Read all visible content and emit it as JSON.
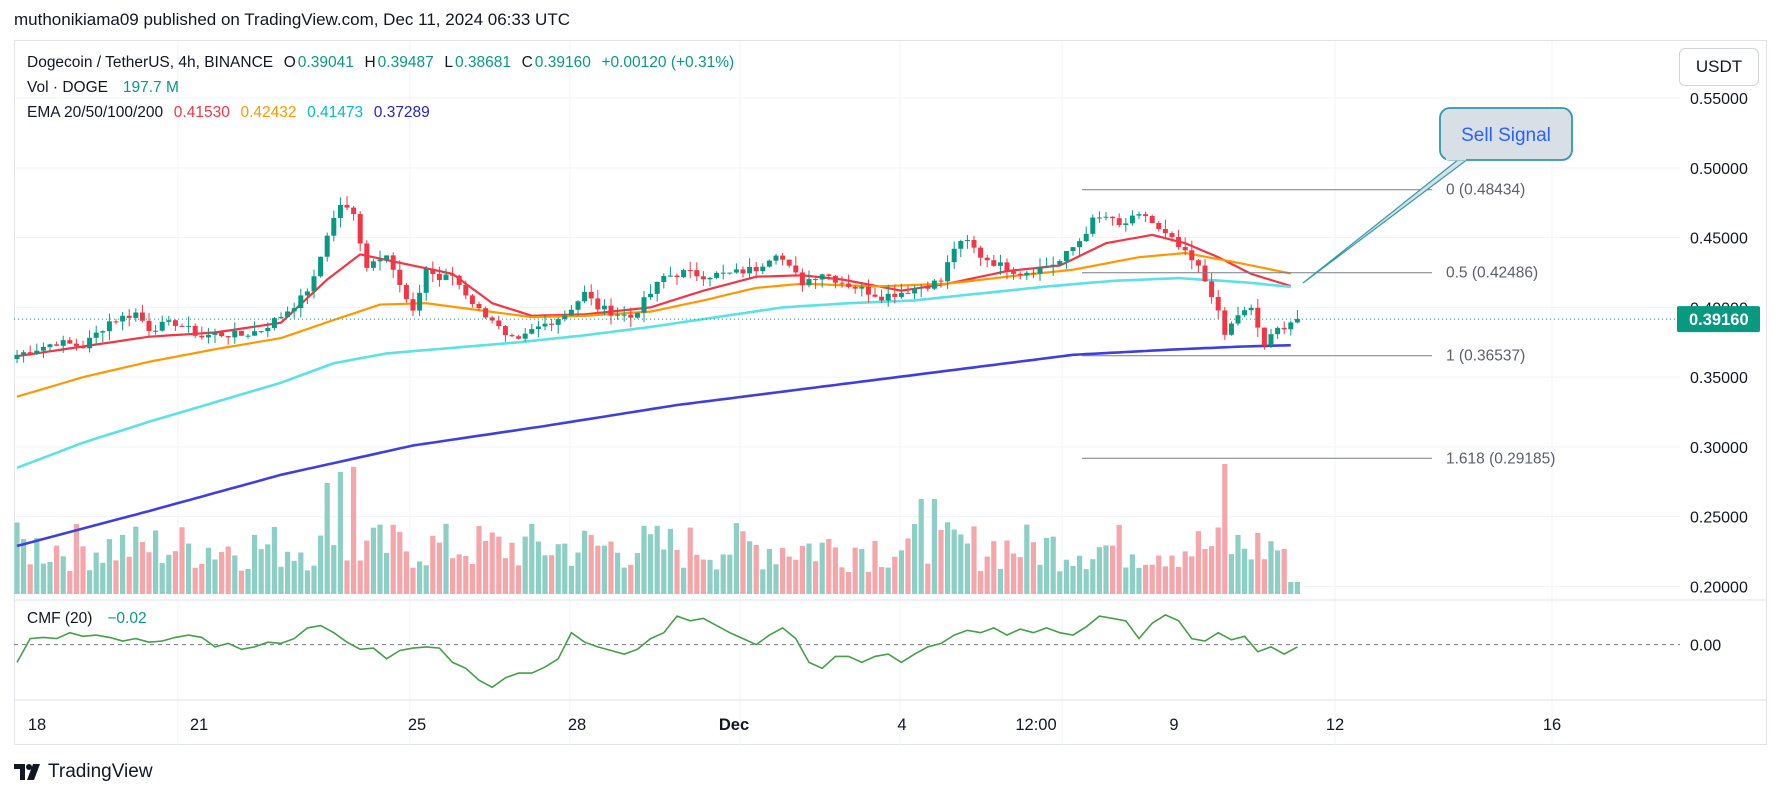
{
  "publisher_line": "muthonikiama09 published on TradingView.com, Dec 11, 2024 06:33 UTC",
  "branding": "TradingView",
  "currency_button": "USDT",
  "legend": {
    "title": "Dogecoin / TetherUS, 4h, BINANCE",
    "o_label": "O",
    "o_value": "0.39041",
    "h_label": "H",
    "h_value": "0.39487",
    "l_label": "L",
    "l_value": "0.38681",
    "c_label": "C",
    "c_value": "0.39160",
    "change": "+0.00120 (+0.31%)",
    "vol_label": "Vol · DOGE",
    "vol_value": "197.7 M",
    "ema_label": "EMA 20/50/100/200",
    "ema20": "0.41530",
    "ema50": "0.42432",
    "ema100": "0.41473",
    "ema200": "0.37289",
    "cmf_label": "CMF (20)",
    "cmf_value": "−0.02"
  },
  "colors": {
    "up": "#089981",
    "down": "#F23645",
    "vol_up": "#8dcfc4",
    "vol_down": "#f5a6ab",
    "ema20": "#F23645",
    "ema50": "#FF9800",
    "ema100": "#5ce1e6",
    "ema200": "#3f3fe0",
    "cmf": "#43a047",
    "price_label": "#089981"
  },
  "annotation": {
    "text": "Sell Signal"
  },
  "chart_data": {
    "type": "candlestick",
    "symbol": "Dogecoin / TetherUS",
    "interval": "4h",
    "exchange": "BINANCE",
    "ylim": [
      0.19,
      0.56
    ],
    "y_ticks": [
      "0.55000",
      "0.50000",
      "0.45000",
      "0.40000",
      "0.35000",
      "0.30000",
      "0.25000",
      "0.20000"
    ],
    "x_ticks": [
      "18",
      "21",
      "25",
      "28",
      "Dec",
      "4",
      "12:00",
      "9",
      "12",
      "16"
    ],
    "last_price": "0.39160",
    "fibonacci": [
      {
        "ratio": "0",
        "price": 0.48434,
        "label": "0 (0.48434)"
      },
      {
        "ratio": "0.5",
        "price": 0.42486,
        "label": "0.5 (0.42486)"
      },
      {
        "ratio": "1",
        "price": 0.36537,
        "label": "1 (0.36537)"
      },
      {
        "ratio": "1.618",
        "price": 0.29185,
        "label": "1.618 (0.29185)"
      }
    ],
    "ohlc_anchors": [
      [
        0,
        0.366
      ],
      [
        6,
        0.375
      ],
      [
        10,
        0.372
      ],
      [
        14,
        0.39
      ],
      [
        18,
        0.396
      ],
      [
        20,
        0.385
      ],
      [
        24,
        0.389
      ],
      [
        28,
        0.379
      ],
      [
        30,
        0.381
      ],
      [
        34,
        0.38
      ],
      [
        37,
        0.384
      ],
      [
        40,
        0.394
      ],
      [
        43,
        0.406
      ],
      [
        45,
        0.42
      ],
      [
        47,
        0.453
      ],
      [
        49,
        0.474
      ],
      [
        51,
        0.466
      ],
      [
        53,
        0.43
      ],
      [
        56,
        0.44
      ],
      [
        58,
        0.415
      ],
      [
        60,
        0.395
      ],
      [
        62,
        0.428
      ],
      [
        64,
        0.42
      ],
      [
        66,
        0.423
      ],
      [
        68,
        0.41
      ],
      [
        70,
        0.398
      ],
      [
        72,
        0.392
      ],
      [
        74,
        0.378
      ],
      [
        76,
        0.375
      ],
      [
        78,
        0.383
      ],
      [
        80,
        0.388
      ],
      [
        83,
        0.395
      ],
      [
        86,
        0.41
      ],
      [
        88,
        0.4
      ],
      [
        90,
        0.397
      ],
      [
        93,
        0.393
      ],
      [
        96,
        0.41
      ],
      [
        98,
        0.422
      ],
      [
        101,
        0.425
      ],
      [
        104,
        0.423
      ],
      [
        108,
        0.424
      ],
      [
        112,
        0.428
      ],
      [
        115,
        0.44
      ],
      [
        117,
        0.428
      ],
      [
        119,
        0.418
      ],
      [
        122,
        0.425
      ],
      [
        125,
        0.418
      ],
      [
        128,
        0.413
      ],
      [
        131,
        0.408
      ],
      [
        134,
        0.411
      ],
      [
        137,
        0.415
      ],
      [
        140,
        0.419
      ],
      [
        142,
        0.443
      ],
      [
        144,
        0.447
      ],
      [
        146,
        0.437
      ],
      [
        149,
        0.43
      ],
      [
        152,
        0.425
      ],
      [
        155,
        0.428
      ],
      [
        158,
        0.433
      ],
      [
        161,
        0.448
      ],
      [
        163,
        0.462
      ],
      [
        165,
        0.465
      ],
      [
        167,
        0.458
      ],
      [
        169,
        0.463
      ],
      [
        171,
        0.466
      ],
      [
        173,
        0.455
      ],
      [
        175,
        0.448
      ],
      [
        177,
        0.438
      ],
      [
        179,
        0.428
      ],
      [
        181,
        0.41
      ],
      [
        183,
        0.38
      ],
      [
        185,
        0.395
      ],
      [
        187,
        0.398
      ],
      [
        189,
        0.373
      ],
      [
        191,
        0.384
      ],
      [
        193,
        0.39
      ],
      [
        194,
        0.3916
      ]
    ],
    "ema_points": {
      "ema20": [
        [
          0,
          0.365
        ],
        [
          10,
          0.372
        ],
        [
          20,
          0.379
        ],
        [
          30,
          0.382
        ],
        [
          40,
          0.389
        ],
        [
          47,
          0.42
        ],
        [
          52,
          0.438
        ],
        [
          60,
          0.43
        ],
        [
          66,
          0.424
        ],
        [
          72,
          0.403
        ],
        [
          78,
          0.394
        ],
        [
          86,
          0.395
        ],
        [
          96,
          0.4
        ],
        [
          104,
          0.412
        ],
        [
          112,
          0.422
        ],
        [
          119,
          0.423
        ],
        [
          125,
          0.42
        ],
        [
          134,
          0.412
        ],
        [
          141,
          0.417
        ],
        [
          150,
          0.426
        ],
        [
          158,
          0.43
        ],
        [
          165,
          0.446
        ],
        [
          172,
          0.452
        ],
        [
          177,
          0.446
        ],
        [
          182,
          0.436
        ],
        [
          187,
          0.424
        ],
        [
          193,
          0.4153
        ]
      ],
      "ema50": [
        [
          0,
          0.336
        ],
        [
          10,
          0.35
        ],
        [
          20,
          0.361
        ],
        [
          30,
          0.37
        ],
        [
          40,
          0.378
        ],
        [
          48,
          0.391
        ],
        [
          55,
          0.402
        ],
        [
          62,
          0.403
        ],
        [
          70,
          0.398
        ],
        [
          78,
          0.393
        ],
        [
          86,
          0.394
        ],
        [
          96,
          0.397
        ],
        [
          104,
          0.405
        ],
        [
          112,
          0.414
        ],
        [
          119,
          0.417
        ],
        [
          130,
          0.415
        ],
        [
          141,
          0.417
        ],
        [
          150,
          0.422
        ],
        [
          160,
          0.427
        ],
        [
          170,
          0.436
        ],
        [
          177,
          0.439
        ],
        [
          185,
          0.432
        ],
        [
          193,
          0.4243
        ]
      ],
      "ema100": [
        [
          0,
          0.285
        ],
        [
          10,
          0.303
        ],
        [
          20,
          0.318
        ],
        [
          30,
          0.332
        ],
        [
          40,
          0.346
        ],
        [
          48,
          0.36
        ],
        [
          56,
          0.367
        ],
        [
          66,
          0.371
        ],
        [
          76,
          0.375
        ],
        [
          86,
          0.38
        ],
        [
          96,
          0.386
        ],
        [
          106,
          0.393
        ],
        [
          116,
          0.4
        ],
        [
          126,
          0.403
        ],
        [
          136,
          0.405
        ],
        [
          146,
          0.41
        ],
        [
          156,
          0.415
        ],
        [
          166,
          0.419
        ],
        [
          176,
          0.421
        ],
        [
          186,
          0.418
        ],
        [
          193,
          0.4147
        ]
      ],
      "ema200": [
        [
          0,
          0.229
        ],
        [
          20,
          0.254
        ],
        [
          40,
          0.28
        ],
        [
          60,
          0.301
        ],
        [
          80,
          0.315
        ],
        [
          100,
          0.33
        ],
        [
          120,
          0.342
        ],
        [
          140,
          0.354
        ],
        [
          160,
          0.366
        ],
        [
          176,
          0.37
        ],
        [
          186,
          0.372
        ],
        [
          193,
          0.3729
        ]
      ]
    },
    "cmf_points": [
      [
        0,
        -0.15
      ],
      [
        2,
        0.05
      ],
      [
        4,
        0.06
      ],
      [
        6,
        0.05
      ],
      [
        8,
        0.1
      ],
      [
        10,
        0.07
      ],
      [
        12,
        0.08
      ],
      [
        14,
        0.06
      ],
      [
        16,
        0.03
      ],
      [
        18,
        0.05
      ],
      [
        20,
        0.02
      ],
      [
        22,
        0.03
      ],
      [
        24,
        0.06
      ],
      [
        26,
        0.08
      ],
      [
        28,
        0.06
      ],
      [
        30,
        -0.02
      ],
      [
        32,
        0.01
      ],
      [
        34,
        -0.04
      ],
      [
        36,
        -0.02
      ],
      [
        38,
        0.02
      ],
      [
        40,
        0.01
      ],
      [
        42,
        0.05
      ],
      [
        44,
        0.14
      ],
      [
        46,
        0.16
      ],
      [
        48,
        0.1
      ],
      [
        50,
        0.02
      ],
      [
        52,
        -0.04
      ],
      [
        54,
        -0.03
      ],
      [
        56,
        -0.12
      ],
      [
        58,
        -0.05
      ],
      [
        60,
        -0.03
      ],
      [
        62,
        -0.02
      ],
      [
        64,
        -0.03
      ],
      [
        66,
        -0.15
      ],
      [
        68,
        -0.2
      ],
      [
        70,
        -0.3
      ],
      [
        72,
        -0.36
      ],
      [
        74,
        -0.28
      ],
      [
        76,
        -0.24
      ],
      [
        78,
        -0.24
      ],
      [
        80,
        -0.19
      ],
      [
        82,
        -0.12
      ],
      [
        84,
        0.1
      ],
      [
        86,
        0.02
      ],
      [
        88,
        -0.02
      ],
      [
        90,
        -0.05
      ],
      [
        92,
        -0.08
      ],
      [
        94,
        -0.04
      ],
      [
        96,
        0.05
      ],
      [
        98,
        0.1
      ],
      [
        100,
        0.24
      ],
      [
        102,
        0.2
      ],
      [
        104,
        0.22
      ],
      [
        106,
        0.16
      ],
      [
        108,
        0.1
      ],
      [
        110,
        0.05
      ],
      [
        112,
        0.0
      ],
      [
        114,
        0.08
      ],
      [
        116,
        0.14
      ],
      [
        118,
        0.05
      ],
      [
        120,
        -0.15
      ],
      [
        122,
        -0.2
      ],
      [
        124,
        -0.1
      ],
      [
        126,
        -0.1
      ],
      [
        128,
        -0.15
      ],
      [
        130,
        -0.1
      ],
      [
        132,
        -0.08
      ],
      [
        134,
        -0.15
      ],
      [
        136,
        -0.08
      ],
      [
        138,
        -0.02
      ],
      [
        140,
        0.01
      ],
      [
        142,
        0.08
      ],
      [
        144,
        0.12
      ],
      [
        146,
        0.1
      ],
      [
        148,
        0.14
      ],
      [
        150,
        0.08
      ],
      [
        152,
        0.13
      ],
      [
        154,
        0.1
      ],
      [
        156,
        0.14
      ],
      [
        158,
        0.1
      ],
      [
        160,
        0.08
      ],
      [
        162,
        0.15
      ],
      [
        164,
        0.24
      ],
      [
        166,
        0.22
      ],
      [
        168,
        0.2
      ],
      [
        170,
        0.05
      ],
      [
        172,
        0.18
      ],
      [
        174,
        0.25
      ],
      [
        176,
        0.2
      ],
      [
        178,
        0.05
      ],
      [
        180,
        0.03
      ],
      [
        182,
        0.1
      ],
      [
        184,
        0.04
      ],
      [
        186,
        0.07
      ],
      [
        188,
        -0.06
      ],
      [
        190,
        -0.02
      ],
      [
        192,
        -0.08
      ],
      [
        194,
        -0.02
      ]
    ],
    "cmf_ylim": [
      -0.45,
      0.35
    ],
    "cmf_ticks": [
      "0.00"
    ]
  }
}
